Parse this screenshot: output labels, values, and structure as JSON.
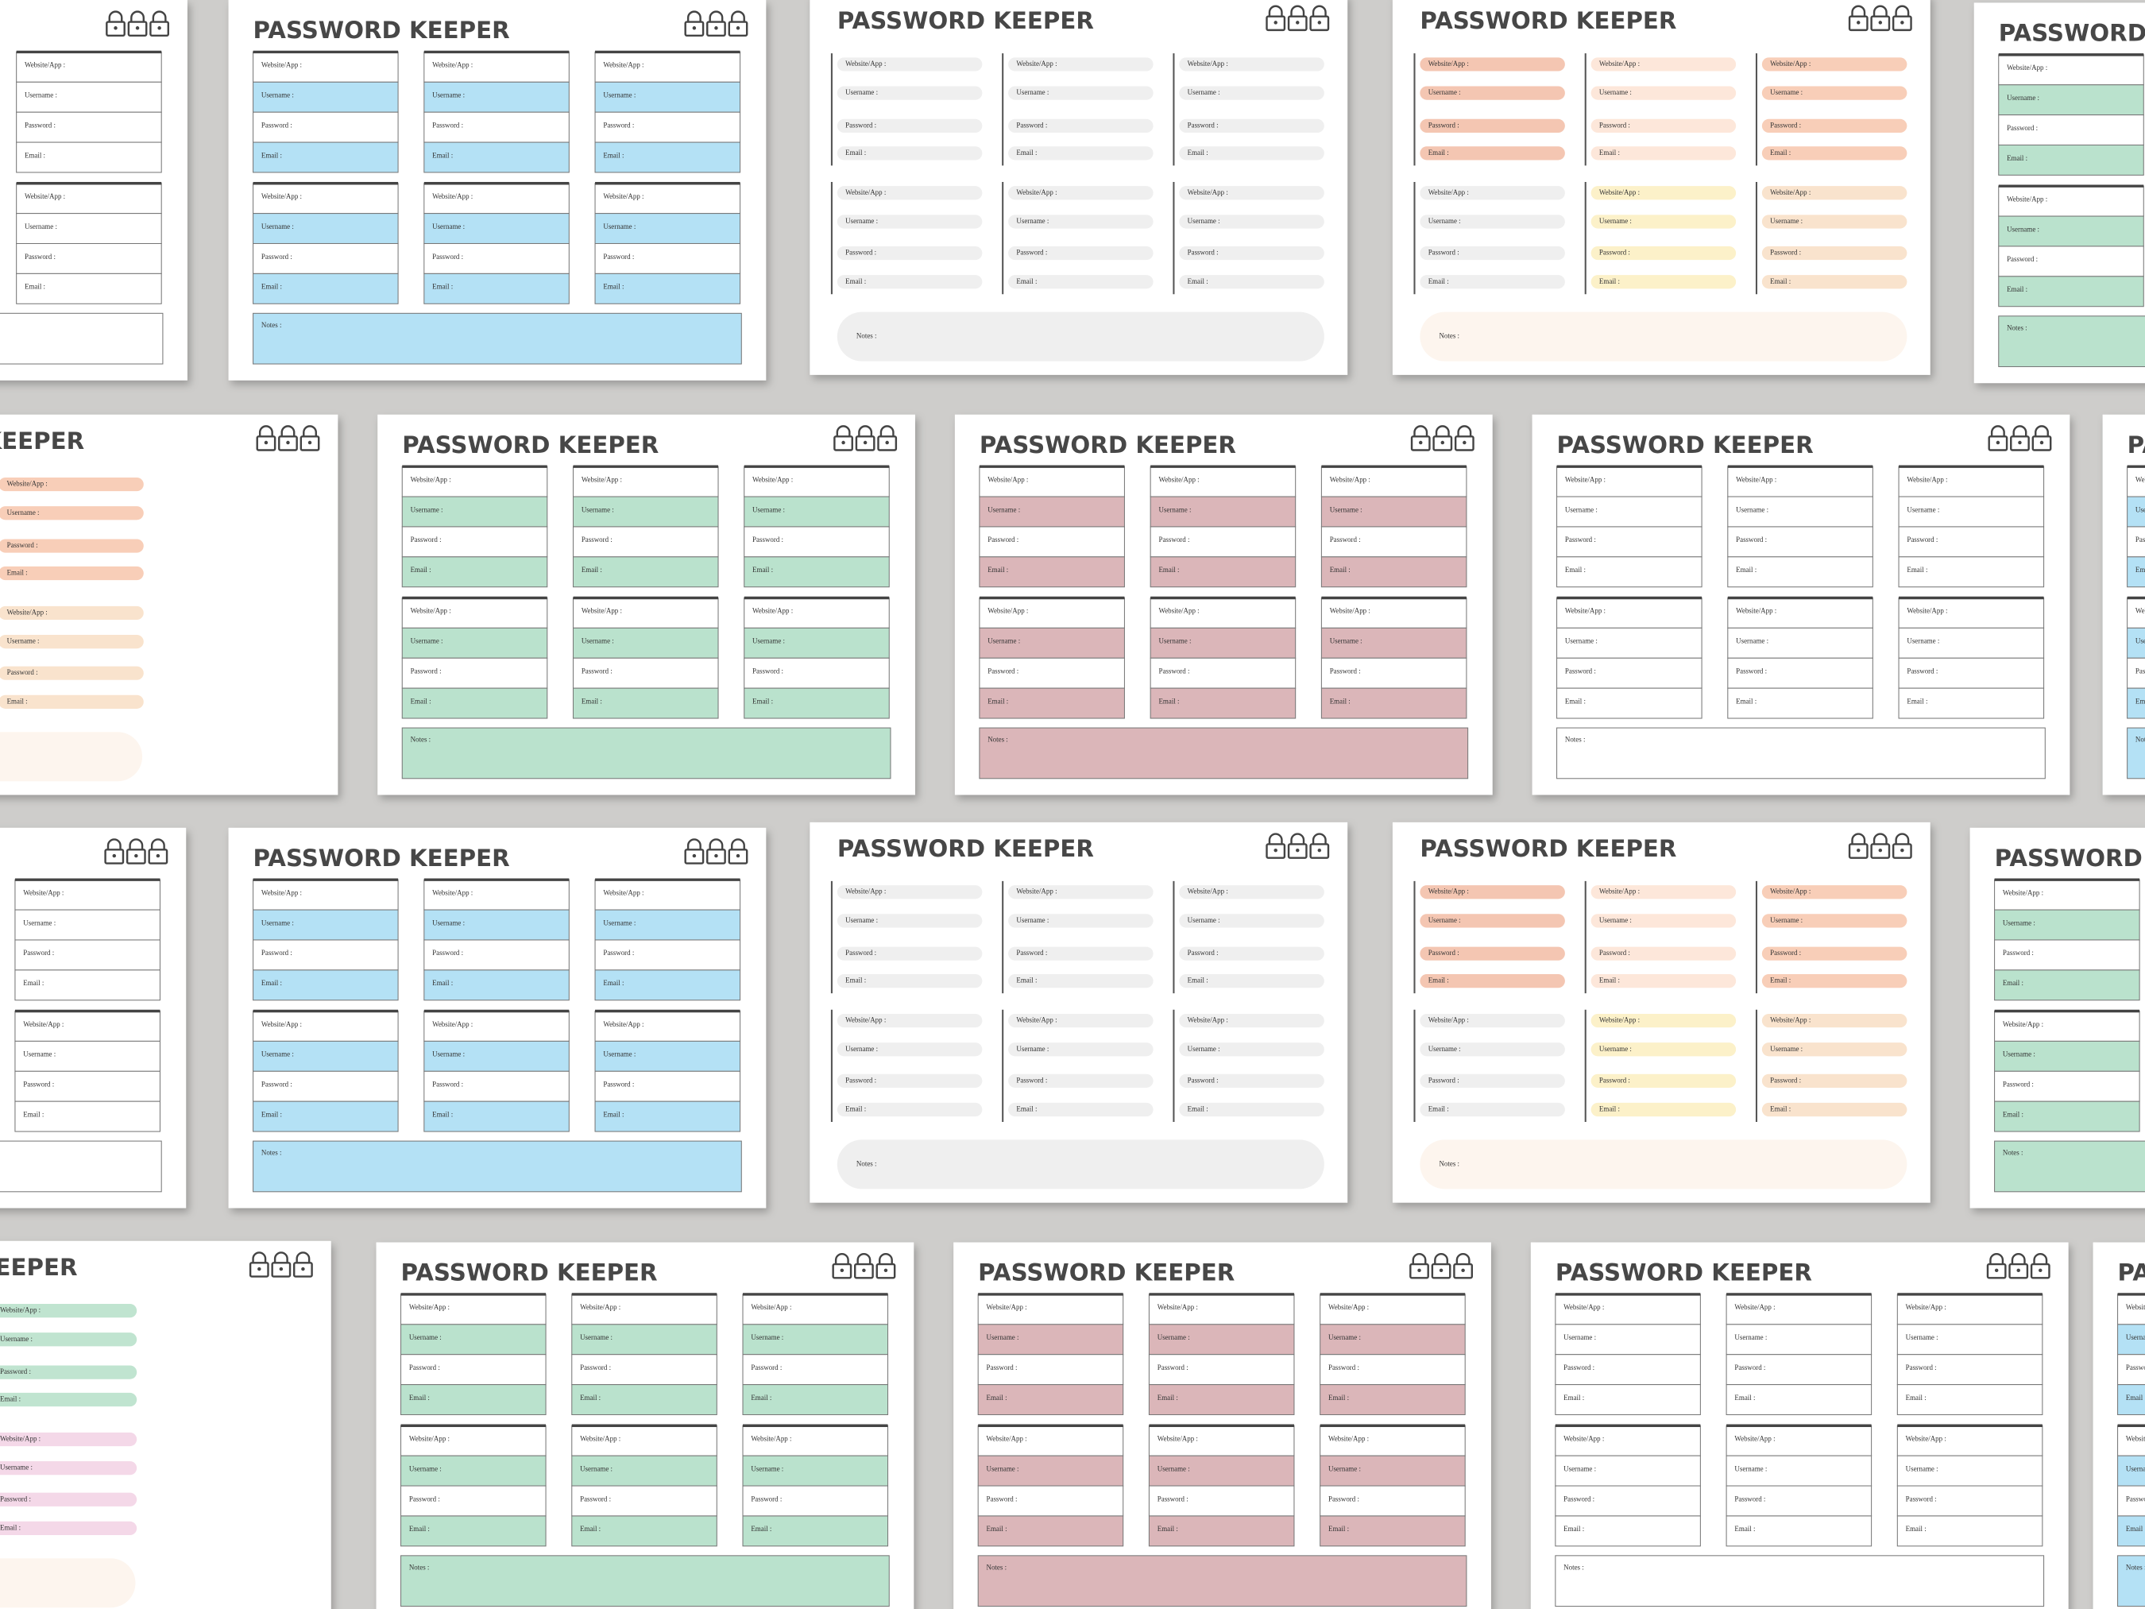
{
  "title": "PASSWORD KEEPER",
  "fields": [
    "Website/App :",
    "Username :",
    "Password :",
    "Email :"
  ],
  "notes": "Notes :"
}
